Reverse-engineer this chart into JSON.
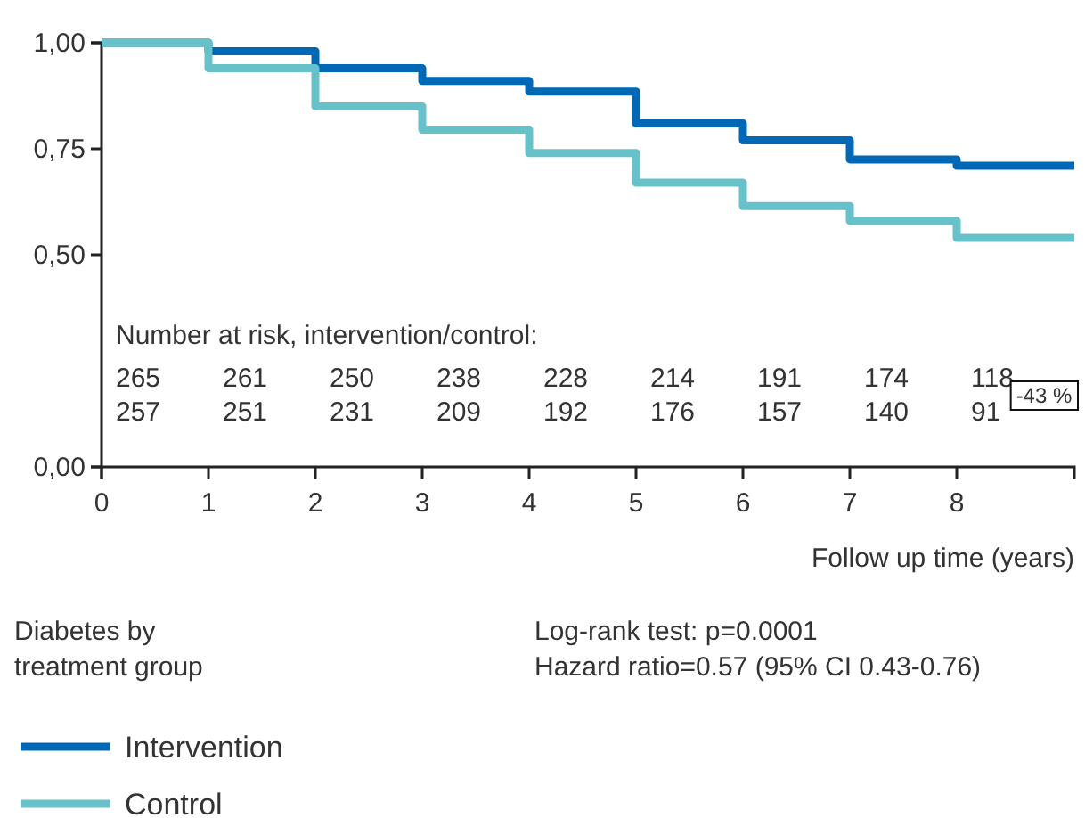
{
  "chart_data": {
    "type": "step",
    "xlabel": "Follow up time (years)",
    "legend_title": "Diabetes by treatment group",
    "legend": "bottom",
    "grid": false,
    "marker": "none",
    "line_style": "solid",
    "x": [
      0,
      1,
      2,
      3,
      4,
      5,
      6,
      7,
      8,
      9.1
    ],
    "xlim": [
      0,
      9.1
    ],
    "xticks": [
      0,
      1,
      2,
      3,
      4,
      5,
      6,
      7,
      8
    ],
    "ylim": [
      0,
      1
    ],
    "yticks": [
      {
        "value": 0,
        "label": "0,00"
      },
      {
        "value": 0.5,
        "label": "0,50"
      },
      {
        "value": 0.75,
        "label": "0,75"
      },
      {
        "value": 1,
        "label": "1,00"
      }
    ],
    "series": [
      {
        "name": "Intervention",
        "color": "#0068b4",
        "values": [
          1,
          0.98,
          0.94,
          0.91,
          0.885,
          0.81,
          0.77,
          0.725,
          0.71,
          0.71
        ]
      },
      {
        "name": "Control",
        "color": "#66c2c8",
        "values": [
          1,
          0.94,
          0.85,
          0.795,
          0.74,
          0.67,
          0.615,
          0.58,
          0.54,
          0.54
        ]
      }
    ],
    "annotations": [
      "Number at risk, intervention/control:",
      "265",
      "261",
      "250",
      "238",
      "228",
      "214",
      "191",
      "174",
      "118",
      "257",
      "251",
      "231",
      "209",
      "192",
      "176",
      "157",
      "140",
      "91",
      "-43 %",
      "Log-rank test: p=0.0001",
      "Hazard ratio=0.57 (95% CI 0.43-0.76)"
    ]
  }
}
